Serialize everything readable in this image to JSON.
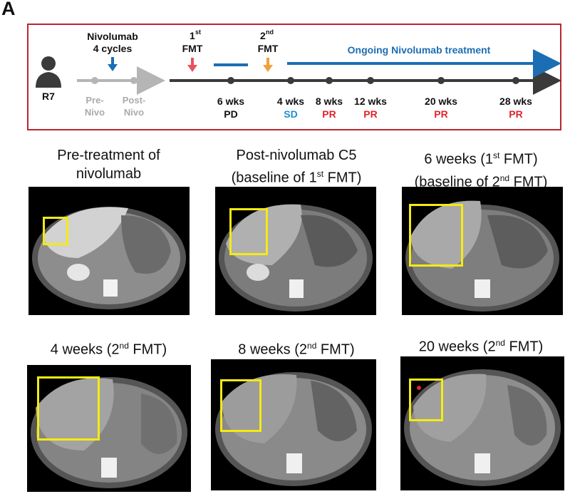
{
  "panel_label": "A",
  "timeline": {
    "patient_id": "R7",
    "nivolumab_label_line1": "Nivolumab",
    "nivolumab_label_line2": "4 cycles",
    "pre_nivo_line1": "Pre-",
    "pre_nivo_line2": "Nivo",
    "post_nivo_line1": "Post-",
    "post_nivo_line2": "Nivo",
    "fmt1_num": "1",
    "fmt1_sup": "st",
    "fmt1_label": "FMT",
    "fmt2_num": "2",
    "fmt2_sup": "nd",
    "fmt2_label": "FMT",
    "ongoing_label": "Ongoing Nivolumab treatment",
    "timepoints": [
      {
        "week": "6 wks",
        "response": "PD"
      },
      {
        "week": "4 wks",
        "response": "SD"
      },
      {
        "week": "8 wks",
        "response": "PR"
      },
      {
        "week": "12 wks",
        "response": "PR"
      },
      {
        "week": "20 wks",
        "response": "PR"
      },
      {
        "week": "28 wks",
        "response": "PR"
      }
    ],
    "colors": {
      "frame": "#b8272e",
      "timeline_line": "#3a3a3a",
      "pre_timeline": "#b5b5b5",
      "nivolumab_blue": "#1b6eb3",
      "fmt1_arrow": "#e8525c",
      "fmt2_arrow": "#f2a03a",
      "pd": "#111111",
      "sd": "#1b8fd0",
      "pr": "#e0242c"
    }
  },
  "scans": {
    "pre": {
      "line1": "Pre-treatment of",
      "line2": "nivolumab"
    },
    "post": {
      "line1": "Post-nivolumab C5",
      "line2_pre": "(baseline of 1",
      "line2_sup": "st",
      "line2_post": " FMT)"
    },
    "w6": {
      "line1_pre": "6 weeks (1",
      "line1_sup": "st",
      "line1_post": " FMT)",
      "line2_pre": "(baseline of 2",
      "line2_sup": "nd",
      "line2_post": " FMT)"
    },
    "w4": {
      "pre": "4 weeks (2",
      "sup": "nd",
      "post": " FMT)"
    },
    "w8": {
      "pre": "8 weeks (2",
      "sup": "nd",
      "post": " FMT)"
    },
    "w20": {
      "pre": "20 weeks (2",
      "sup": "nd",
      "post": " FMT)"
    }
  }
}
